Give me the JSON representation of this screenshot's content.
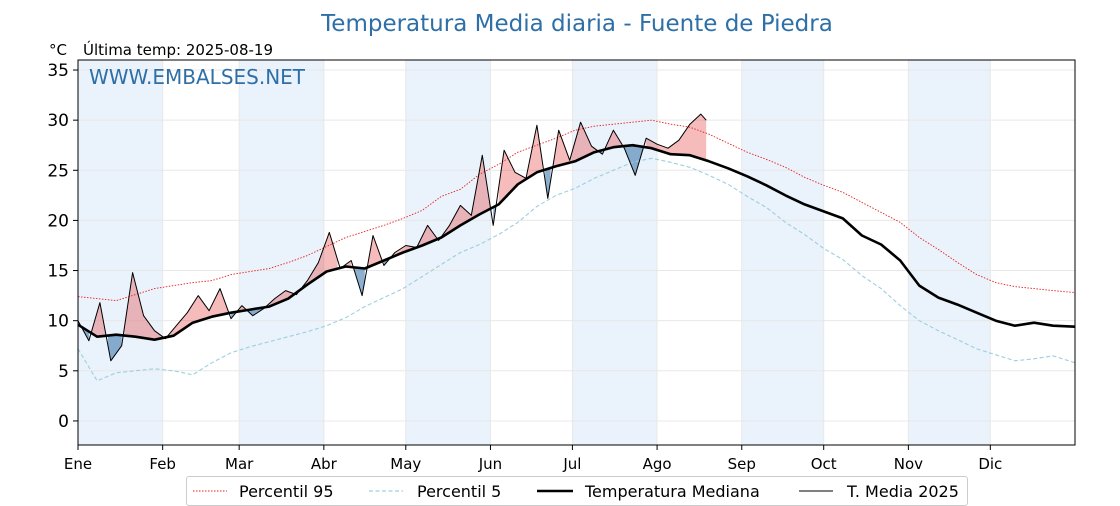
{
  "title": "Temperatura Media diaria - Fuente de Piedra",
  "unit": "°C",
  "last_temp_label": "Última temp: 2025-08-19",
  "watermark": "WWW.EMBALSES.NET",
  "colors": {
    "title": "#2e6fa7",
    "p95": "#e82020",
    "p5": "#9ccfe0",
    "median": "#000000",
    "actual": "#000000",
    "above": "#e02020",
    "below": "#3070a8",
    "month_band": "#eaf2fb"
  },
  "chart_data": {
    "type": "line",
    "title": "Temperatura Media diaria - Fuente de Piedra",
    "ylabel": "°C",
    "ylim": [
      -2.4,
      36.0
    ],
    "xlim": [
      1,
      366
    ],
    "yticks": [
      0,
      5,
      10,
      15,
      20,
      25,
      30,
      35
    ],
    "grid": true,
    "legend_position": "bottom",
    "months": [
      {
        "label": "Ene",
        "day": 1
      },
      {
        "label": "Feb",
        "day": 32
      },
      {
        "label": "Mar",
        "day": 60
      },
      {
        "label": "Abr",
        "day": 91
      },
      {
        "label": "May",
        "day": 121
      },
      {
        "label": "Jun",
        "day": 152
      },
      {
        "label": "Jul",
        "day": 182
      },
      {
        "label": "Ago",
        "day": 213
      },
      {
        "label": "Sep",
        "day": 244
      },
      {
        "label": "Oct",
        "day": 274
      },
      {
        "label": "Nov",
        "day": 305
      },
      {
        "label": "Dic",
        "day": 335
      }
    ],
    "series": [
      {
        "name": "Percentil 95",
        "style": "dotted",
        "x": [
          1,
          8,
          15,
          22,
          29,
          36,
          43,
          50,
          57,
          64,
          71,
          78,
          85,
          92,
          99,
          106,
          113,
          120,
          127,
          134,
          141,
          148,
          155,
          162,
          169,
          176,
          183,
          190,
          197,
          204,
          211,
          218,
          225,
          232,
          239,
          246,
          253,
          260,
          267,
          274,
          281,
          288,
          295,
          302,
          309,
          316,
          323,
          330,
          337,
          344,
          351,
          358,
          366
        ],
        "y": [
          12.4,
          12.2,
          12.0,
          12.6,
          13.2,
          13.5,
          13.8,
          14.0,
          14.6,
          14.9,
          15.2,
          15.8,
          16.5,
          17.4,
          18.3,
          18.9,
          19.5,
          20.2,
          21.0,
          22.4,
          23.1,
          24.6,
          25.6,
          26.8,
          27.5,
          28.2,
          29.0,
          29.4,
          29.6,
          29.8,
          30.0,
          29.6,
          29.3,
          28.6,
          27.7,
          26.8,
          26.1,
          25.3,
          24.3,
          23.5,
          22.8,
          21.8,
          20.8,
          19.8,
          18.3,
          17.1,
          15.8,
          14.6,
          13.8,
          13.4,
          13.2,
          13.0,
          12.8
        ]
      },
      {
        "name": "Percentil 5",
        "style": "dashed",
        "x": [
          1,
          8,
          15,
          22,
          29,
          36,
          43,
          50,
          57,
          64,
          71,
          78,
          85,
          92,
          99,
          106,
          113,
          120,
          127,
          134,
          141,
          148,
          155,
          162,
          169,
          176,
          183,
          190,
          197,
          204,
          211,
          218,
          225,
          232,
          239,
          246,
          253,
          260,
          267,
          274,
          281,
          288,
          295,
          302,
          309,
          316,
          323,
          330,
          337,
          344,
          351,
          358,
          366
        ],
        "y": [
          7.2,
          4.0,
          4.8,
          5.0,
          5.2,
          5.0,
          4.6,
          5.8,
          6.8,
          7.4,
          7.9,
          8.4,
          8.9,
          9.5,
          10.3,
          11.4,
          12.3,
          13.2,
          14.4,
          15.6,
          16.8,
          17.6,
          18.6,
          19.8,
          21.4,
          22.5,
          23.2,
          24.2,
          25.0,
          25.8,
          26.2,
          25.8,
          25.3,
          24.5,
          23.6,
          22.4,
          21.3,
          19.8,
          18.6,
          17.2,
          16.1,
          14.5,
          13.2,
          11.5,
          10.0,
          9.0,
          8.1,
          7.2,
          6.6,
          6.0,
          6.2,
          6.5,
          5.8
        ]
      },
      {
        "name": "Temperatura Mediana",
        "style": "solid-thick",
        "x": [
          1,
          8,
          15,
          22,
          29,
          36,
          43,
          50,
          57,
          64,
          71,
          78,
          85,
          92,
          99,
          106,
          113,
          120,
          127,
          134,
          141,
          148,
          155,
          162,
          169,
          176,
          183,
          190,
          197,
          204,
          211,
          218,
          225,
          232,
          239,
          246,
          253,
          260,
          267,
          274,
          281,
          288,
          295,
          302,
          309,
          316,
          323,
          330,
          337,
          344,
          351,
          358,
          366
        ],
        "y": [
          9.6,
          8.4,
          8.6,
          8.4,
          8.1,
          8.5,
          9.8,
          10.4,
          10.8,
          11.1,
          11.4,
          12.2,
          13.6,
          14.9,
          15.4,
          15.2,
          16.0,
          16.8,
          17.5,
          18.3,
          19.5,
          20.6,
          21.6,
          23.6,
          24.8,
          25.4,
          25.9,
          26.8,
          27.3,
          27.5,
          27.2,
          26.6,
          26.5,
          25.9,
          25.2,
          24.4,
          23.5,
          22.5,
          21.6,
          20.9,
          20.2,
          18.5,
          17.6,
          16.0,
          13.5,
          12.3,
          11.6,
          10.8,
          10.0,
          9.5,
          9.8,
          9.5,
          9.4
        ]
      },
      {
        "name": "T. Media 2025",
        "style": "solid-thin",
        "x": [
          1,
          5,
          9,
          13,
          17,
          21,
          25,
          29,
          33,
          37,
          41,
          45,
          49,
          53,
          57,
          61,
          65,
          69,
          73,
          77,
          81,
          85,
          89,
          93,
          97,
          101,
          105,
          109,
          113,
          117,
          121,
          125,
          129,
          133,
          137,
          141,
          145,
          149,
          153,
          157,
          161,
          165,
          169,
          173,
          177,
          181,
          185,
          189,
          193,
          197,
          201,
          205,
          209,
          213,
          217,
          221,
          225,
          229,
          231
        ],
        "y": [
          10.0,
          8.0,
          11.8,
          6.0,
          7.5,
          14.8,
          10.5,
          9.0,
          8.2,
          9.5,
          10.8,
          12.5,
          11.0,
          13.2,
          10.2,
          11.5,
          10.5,
          11.2,
          12.2,
          13.0,
          12.6,
          14.0,
          15.8,
          18.8,
          15.2,
          16.0,
          12.5,
          18.5,
          15.5,
          16.8,
          17.5,
          17.3,
          19.5,
          18.0,
          19.5,
          21.5,
          20.5,
          26.5,
          19.5,
          27.0,
          24.8,
          24.2,
          29.5,
          22.2,
          29.0,
          26.0,
          29.8,
          27.4,
          26.6,
          29.0,
          27.2,
          24.5,
          28.2,
          27.6,
          27.2,
          28.0,
          29.6,
          30.6,
          30.0
        ]
      }
    ]
  },
  "legend": [
    {
      "label": "Percentil 95",
      "icon": "dotted-red-line"
    },
    {
      "label": "Percentil 5",
      "icon": "dashed-lightblue-line"
    },
    {
      "label": "Temperatura Mediana",
      "icon": "thick-black-line"
    },
    {
      "label": "T. Media 2025",
      "icon": "thin-black-line"
    }
  ]
}
